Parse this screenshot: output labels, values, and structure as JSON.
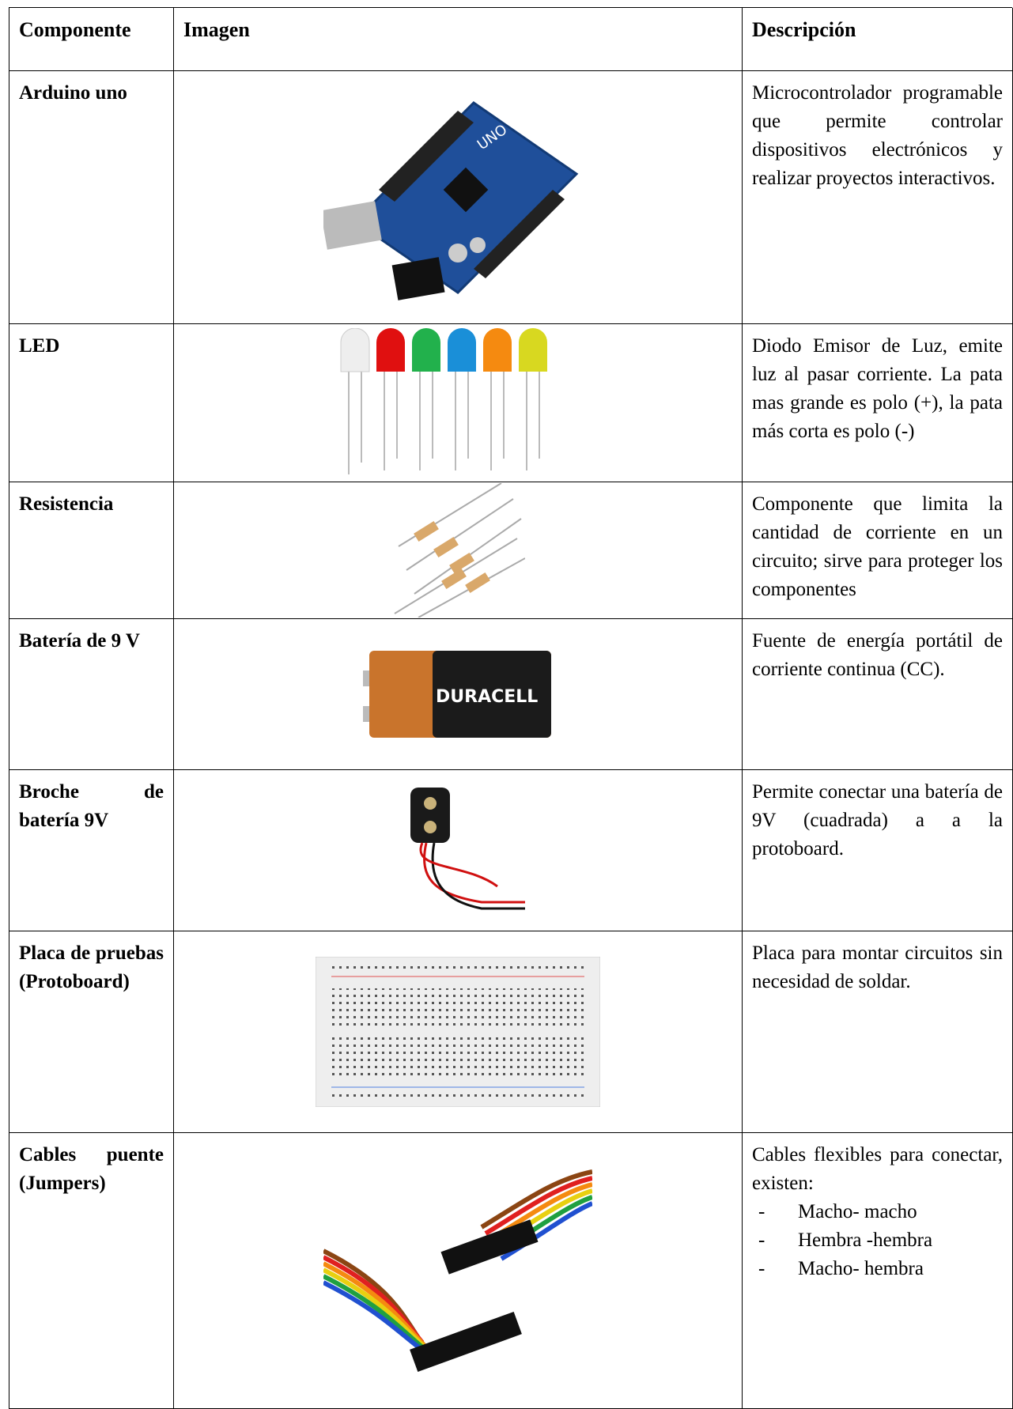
{
  "table": {
    "header": [
      "Componente",
      "Imagen",
      "Descripción"
    ],
    "rows": [
      {
        "component": "Arduino uno",
        "description": "Microcontrolador programable que permite controlar dispositivos electrónicos y realizar proyectos interactivos."
      },
      {
        "component": "LED",
        "description": "Diodo Emisor de Luz, emite luz al pasar corriente. La pata mas grande es polo (+), la pata más corta es polo (-)"
      },
      {
        "component": "Resistencia",
        "description": "Componente que limita la cantidad de corriente en un circuito; sirve para proteger los componentes"
      },
      {
        "component": "Batería de 9 V",
        "description": "Fuente de energía portátil de corriente continua (CC)."
      },
      {
        "component": "Broche de batería 9V",
        "description": "Permite conectar una batería de 9V (cuadrada) a a la protoboard."
      },
      {
        "component": "Placa de pruebas (Protoboard)",
        "description": "Placa para montar circuitos sin necesidad de soldar."
      },
      {
        "component": "Cables puente (Jumpers)",
        "description": "Cables flexibles para conectar, existen:",
        "items": [
          "Macho- macho",
          "Hembra -hembra",
          "Macho- hembra"
        ]
      }
    ]
  }
}
